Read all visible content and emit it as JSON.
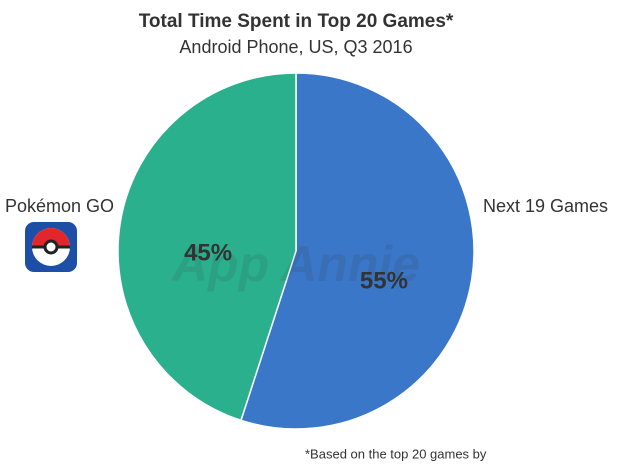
{
  "chart_data": {
    "type": "pie",
    "title": "Total Time Spent in Top 20 Games*",
    "subtitle": "Android Phone, US, Q3 2016",
    "categories": [
      "Next 19 Games",
      "Pokémon GO"
    ],
    "values": [
      55,
      45
    ],
    "value_labels": [
      "55%",
      "45%"
    ],
    "colors": [
      "#3a77c8",
      "#2bb08e"
    ],
    "watermark": "App Annie",
    "footnote": "*Based on the top 20 games by"
  }
}
